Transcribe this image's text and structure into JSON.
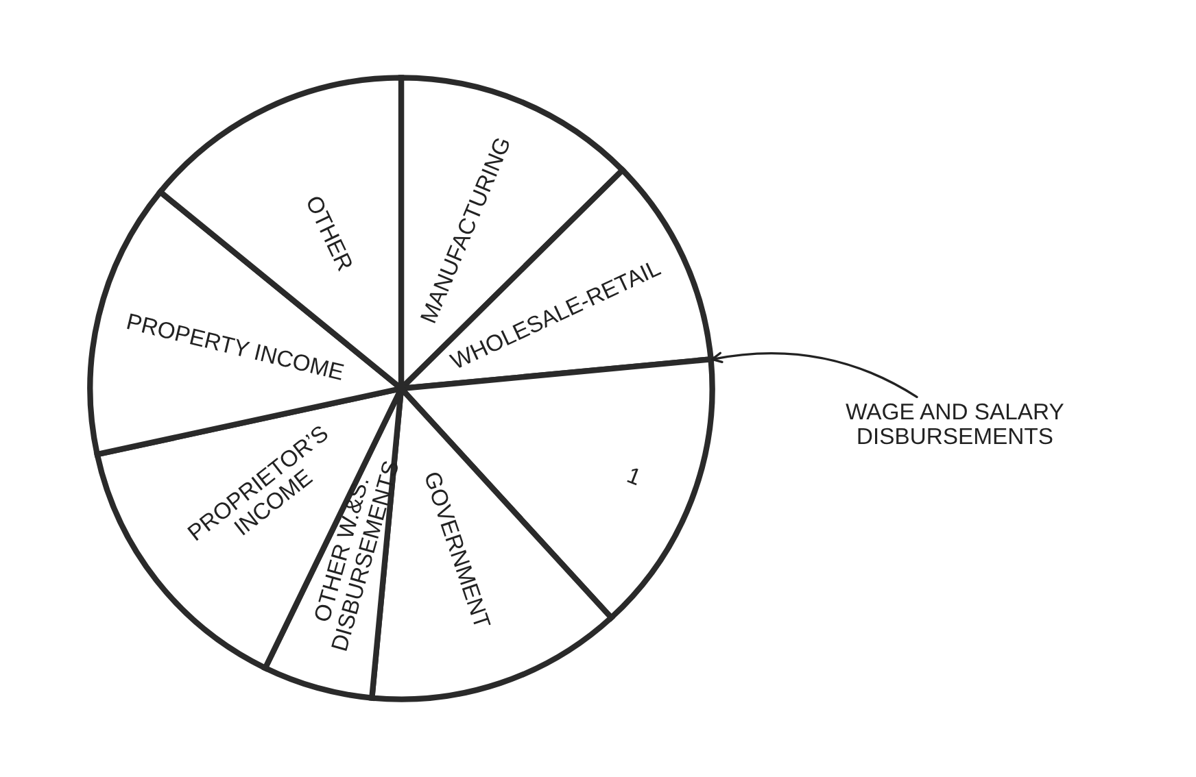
{
  "chart_data": {
    "type": "pie",
    "categories": [
      "MANUFACTURING",
      "WHOLESALE-RETAIL",
      "1",
      "GOVERNMENT",
      "OTHER W.&S.\nDISBURSEMENTS",
      "PROPRIETOR’S\nINCOME",
      "PROPERTY INCOME",
      "OTHER"
    ],
    "values": [
      12.6,
      10.9,
      14.7,
      13.3,
      5.7,
      14.4,
      14.3,
      14.1
    ],
    "colors": [
      "#ffffff",
      "#ffffff",
      "#ffffff",
      "#ffffff",
      "#ffffff",
      "#ffffff",
      "#ffffff",
      "#ffffff"
    ],
    "annotations": [
      "WAGE AND SALARY\nDISBURSEMENTS"
    ],
    "legend": false
  }
}
